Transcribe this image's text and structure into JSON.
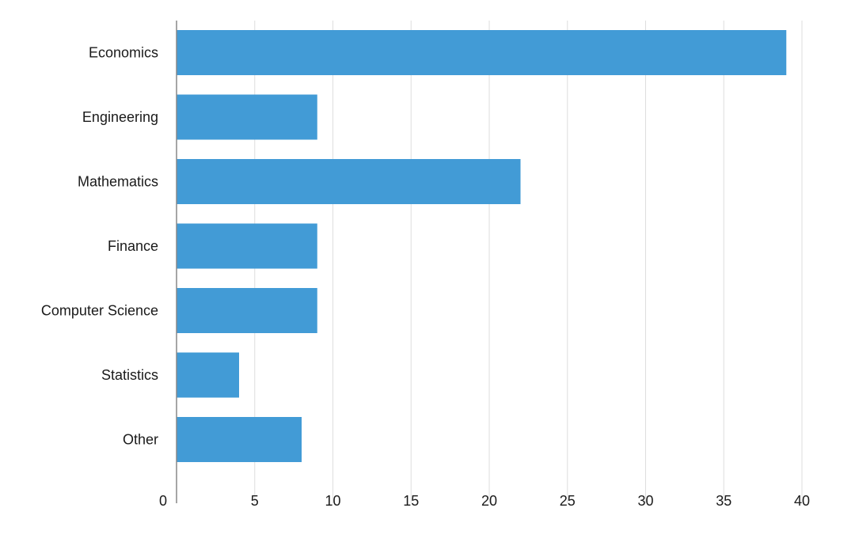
{
  "chart_data": {
    "type": "bar",
    "orientation": "horizontal",
    "categories": [
      "Economics",
      "Engineering",
      "Mathematics",
      "Finance",
      "Computer Science",
      "Statistics",
      "Other"
    ],
    "values": [
      39,
      9,
      22,
      9,
      9,
      4,
      8
    ],
    "title": "",
    "xlabel": "",
    "ylabel": "",
    "xlim": [
      0,
      40
    ],
    "xticks": [
      0,
      5,
      10,
      15,
      20,
      25,
      30,
      35,
      40
    ],
    "grid": "vertical",
    "legend": "none",
    "bar_color": "#429bd6"
  }
}
